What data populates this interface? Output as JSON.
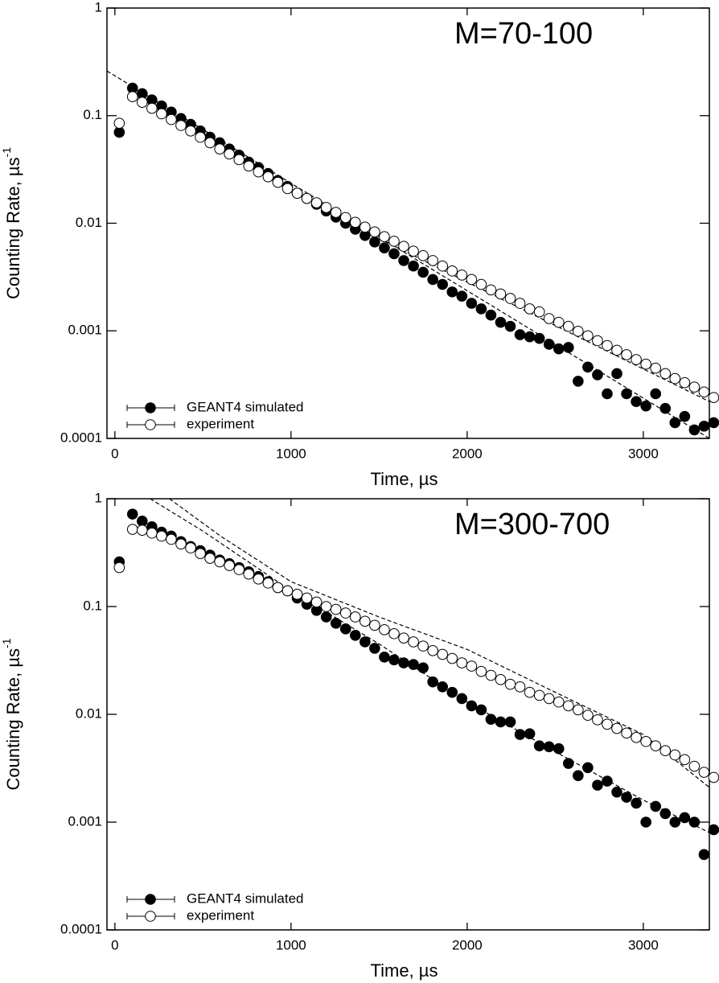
{
  "chart_data": [
    {
      "type": "scatter",
      "annotation": "M=70-100",
      "xlabel": "Time,  µs",
      "ylabel": "Counting Rate,  µs",
      "ylabel_sup": "-1",
      "yscale": "log",
      "legend": "lower left",
      "xlim": [
        -45,
        3375
      ],
      "ylim": [
        0.0001,
        1
      ],
      "xticks": [
        0,
        1000,
        2000,
        3000
      ],
      "yticks": [
        0.0001,
        0.001,
        0.01,
        0.1,
        1
      ],
      "x": [
        25,
        100,
        155,
        210,
        265,
        320,
        375,
        430,
        485,
        540,
        595,
        650,
        705,
        760,
        815,
        870,
        925,
        980,
        1035,
        1090,
        1145,
        1200,
        1255,
        1310,
        1365,
        1420,
        1475,
        1530,
        1585,
        1640,
        1695,
        1750,
        1805,
        1860,
        1915,
        1970,
        2025,
        2080,
        2135,
        2190,
        2245,
        2300,
        2355,
        2410,
        2465,
        2520,
        2575,
        2630,
        2685,
        2740,
        2795,
        2850,
        2905,
        2960,
        3015,
        3070,
        3125,
        3180,
        3235,
        3290,
        3345,
        3400
      ],
      "series": [
        {
          "name": "GEANT4 simulated",
          "color": "#000000",
          "marker": "filled",
          "values": [
            0.07,
            0.18,
            0.16,
            0.14,
            0.123,
            0.108,
            0.094,
            0.083,
            0.072,
            0.063,
            0.056,
            0.049,
            0.043,
            0.037,
            0.033,
            0.029,
            0.025,
            0.022,
            0.019,
            0.017,
            0.015,
            0.013,
            0.0114,
            0.01,
            0.0088,
            0.0077,
            0.0067,
            0.0059,
            0.0052,
            0.0045,
            0.004,
            0.0035,
            0.003,
            0.0027,
            0.0023,
            0.0021,
            0.0018,
            0.0016,
            0.0014,
            0.0012,
            0.0011,
            0.00092,
            0.00088,
            0.00085,
            0.00075,
            0.00068,
            0.0007,
            0.00034,
            0.00046,
            0.00039,
            0.00026,
            0.0004,
            0.00026,
            0.00022,
            0.0002,
            0.00026,
            0.00019,
            0.00014,
            0.00016,
            0.00012,
            0.00013,
            0.00014
          ]
        },
        {
          "name": "experiment",
          "color": "#000000",
          "marker": "open",
          "values": [
            0.085,
            0.15,
            0.133,
            0.117,
            0.104,
            0.092,
            0.081,
            0.072,
            0.063,
            0.056,
            0.049,
            0.044,
            0.039,
            0.034,
            0.03,
            0.027,
            0.024,
            0.021,
            0.019,
            0.017,
            0.0155,
            0.014,
            0.0126,
            0.0113,
            0.0102,
            0.0092,
            0.0083,
            0.0075,
            0.0068,
            0.0061,
            0.0055,
            0.005,
            0.0045,
            0.004,
            0.0036,
            0.0033,
            0.003,
            0.0027,
            0.0024,
            0.0022,
            0.002,
            0.0018,
            0.0016,
            0.0015,
            0.0013,
            0.0012,
            0.0011,
            0.00099,
            0.0009,
            0.00081,
            0.00073,
            0.00066,
            0.0006,
            0.00054,
            0.00049,
            0.00045,
            0.0004,
            0.00036,
            0.00033,
            0.0003,
            0.00027,
            0.00024
          ]
        }
      ],
      "fits": [
        {
          "x": [
            -45,
            3375
          ],
          "values": [
            0.26,
            0.0001
          ]
        },
        {
          "x": [
            1500,
            3375
          ],
          "values": [
            0.0072,
            0.00022
          ]
        }
      ]
    },
    {
      "type": "scatter",
      "annotation": "M=300-700",
      "xlabel": "Time,  µs",
      "ylabel": "Counting Rate,  µs",
      "ylabel_sup": "-1",
      "yscale": "log",
      "legend": "lower left",
      "xlim": [
        -45,
        3375
      ],
      "ylim": [
        0.0001,
        1
      ],
      "xticks": [
        0,
        1000,
        2000,
        3000
      ],
      "yticks": [
        0.0001,
        0.001,
        0.01,
        0.1,
        1
      ],
      "x": [
        25,
        100,
        155,
        210,
        265,
        320,
        375,
        430,
        485,
        540,
        595,
        650,
        705,
        760,
        815,
        870,
        925,
        980,
        1035,
        1090,
        1145,
        1200,
        1255,
        1310,
        1365,
        1420,
        1475,
        1530,
        1585,
        1640,
        1695,
        1750,
        1805,
        1860,
        1915,
        1970,
        2025,
        2080,
        2135,
        2190,
        2245,
        2300,
        2355,
        2410,
        2465,
        2520,
        2575,
        2630,
        2685,
        2740,
        2795,
        2850,
        2905,
        2960,
        3015,
        3070,
        3125,
        3180,
        3235,
        3290,
        3345,
        3400
      ],
      "series": [
        {
          "name": "GEANT4 simulated",
          "color": "#000000",
          "marker": "filled",
          "values": [
            0.26,
            0.72,
            0.62,
            0.55,
            0.49,
            0.45,
            0.4,
            0.36,
            0.33,
            0.3,
            0.27,
            0.25,
            0.23,
            0.21,
            0.19,
            0.17,
            0.15,
            0.14,
            0.12,
            0.105,
            0.092,
            0.08,
            0.07,
            0.062,
            0.054,
            0.047,
            0.041,
            0.034,
            0.032,
            0.03,
            0.029,
            0.027,
            0.02,
            0.018,
            0.016,
            0.014,
            0.012,
            0.011,
            0.009,
            0.0085,
            0.0085,
            0.0065,
            0.0066,
            0.0051,
            0.005,
            0.0048,
            0.0035,
            0.0027,
            0.0032,
            0.0022,
            0.0024,
            0.0019,
            0.0017,
            0.0015,
            0.001,
            0.0014,
            0.0012,
            0.001,
            0.0011,
            0.001,
            0.0005,
            0.00085
          ]
        },
        {
          "name": "experiment",
          "color": "#000000",
          "marker": "open",
          "values": [
            0.23,
            0.52,
            0.51,
            0.48,
            0.45,
            0.42,
            0.38,
            0.35,
            0.31,
            0.28,
            0.26,
            0.24,
            0.22,
            0.2,
            0.18,
            0.165,
            0.15,
            0.14,
            0.13,
            0.12,
            0.11,
            0.1,
            0.094,
            0.087,
            0.08,
            0.073,
            0.067,
            0.061,
            0.056,
            0.051,
            0.047,
            0.043,
            0.039,
            0.036,
            0.033,
            0.03,
            0.028,
            0.025,
            0.023,
            0.021,
            0.019,
            0.018,
            0.016,
            0.015,
            0.014,
            0.013,
            0.012,
            0.011,
            0.0098,
            0.0089,
            0.0081,
            0.0074,
            0.0067,
            0.0061,
            0.0056,
            0.0051,
            0.0046,
            0.0042,
            0.0038,
            0.0033,
            0.0029,
            0.0026
          ]
        }
      ],
      "fits": [
        {
          "x": [
            200,
            500,
            1000,
            1500,
            2000,
            2500,
            3000,
            3375
          ],
          "values": [
            1,
            0.5,
            0.14,
            0.045,
            0.013,
            0.0045,
            0.0016,
            0.0008
          ]
        },
        {
          "x": [
            310,
            600,
            1000,
            1500,
            2000,
            2500,
            3000,
            3375
          ],
          "values": [
            1,
            0.45,
            0.17,
            0.08,
            0.04,
            0.016,
            0.0065,
            0.0021
          ]
        }
      ]
    }
  ]
}
